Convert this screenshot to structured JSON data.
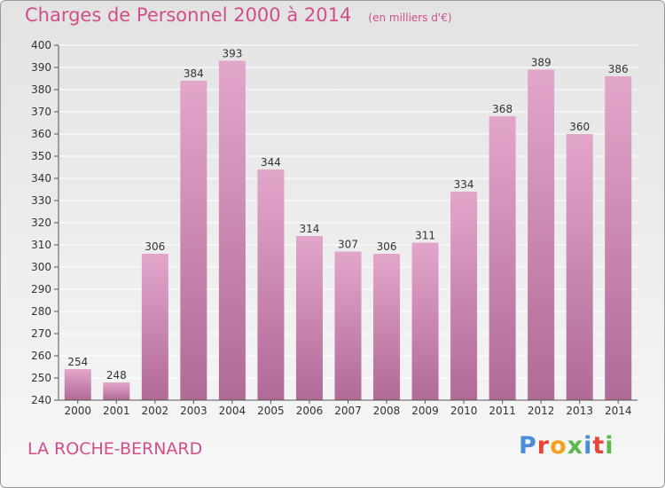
{
  "title": "Charges de Personnel 2000 à 2014",
  "subtitle": "(en milliers d'€)",
  "commune": "LA ROCHE-BERNARD",
  "logo": {
    "text": "Proxiti"
  },
  "colors": {
    "accent": "#d14f8a",
    "bar_top": "#e3a6cb",
    "bar_bottom": "#b06a96",
    "axis": "#555555",
    "grid": "#ffffff"
  },
  "chart_data": {
    "type": "bar",
    "categories": [
      "2000",
      "2001",
      "2002",
      "2003",
      "2004",
      "2005",
      "2006",
      "2007",
      "2008",
      "2009",
      "2010",
      "2011",
      "2012",
      "2013",
      "2014"
    ],
    "values": [
      254,
      248,
      306,
      384,
      393,
      344,
      314,
      307,
      306,
      311,
      334,
      368,
      389,
      360,
      386
    ],
    "title": "Charges de Personnel 2000 à 2014",
    "subtitle": "(en milliers d'€)",
    "xlabel": "",
    "ylabel": "",
    "ylim": [
      240,
      400
    ],
    "ytick_step": 10,
    "grid": true,
    "data_labels": true
  }
}
